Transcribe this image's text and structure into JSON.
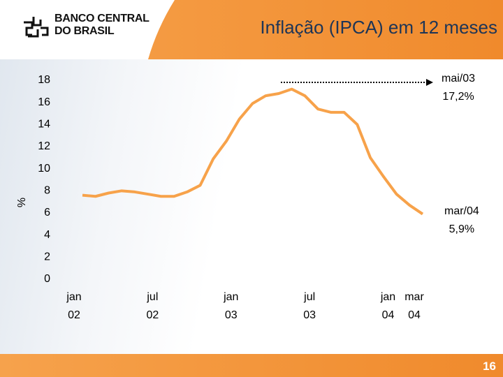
{
  "header": {
    "logo": "BANCO CENTRAL\nDO BRASIL"
  },
  "chart_data": {
    "type": "line",
    "title": "Inflação (IPCA) em 12 meses",
    "y_label": "%",
    "categories": [
      "jan\n02",
      null,
      null,
      null,
      null,
      null,
      "jul\n02",
      null,
      null,
      null,
      null,
      null,
      "jan\n03",
      null,
      null,
      null,
      null,
      null,
      "jul\n03",
      null,
      null,
      null,
      null,
      null,
      "jan\n04",
      null,
      "mar\n04"
    ],
    "series": [
      {
        "color": "#f7a24a",
        "values": [
          7.6,
          7.5,
          7.8,
          8.0,
          7.9,
          7.7,
          7.5,
          7.5,
          7.9,
          8.5,
          10.9,
          12.5,
          14.5,
          15.9,
          16.6,
          16.8,
          17.2,
          16.6,
          15.4,
          15.1,
          15.1,
          14.0,
          11.0,
          9.3,
          7.7,
          6.7,
          5.9
        ]
      }
    ],
    "ylim": [
      0,
      18
    ],
    "yticks": [
      0,
      2,
      4,
      6,
      8,
      10,
      12,
      14,
      16,
      18
    ],
    "grid": false,
    "annotations": [
      {
        "text": "mai/03\n17,2%"
      },
      {
        "text": "mar/04\n5,9%"
      }
    ]
  },
  "footer": {
    "page": "16"
  }
}
